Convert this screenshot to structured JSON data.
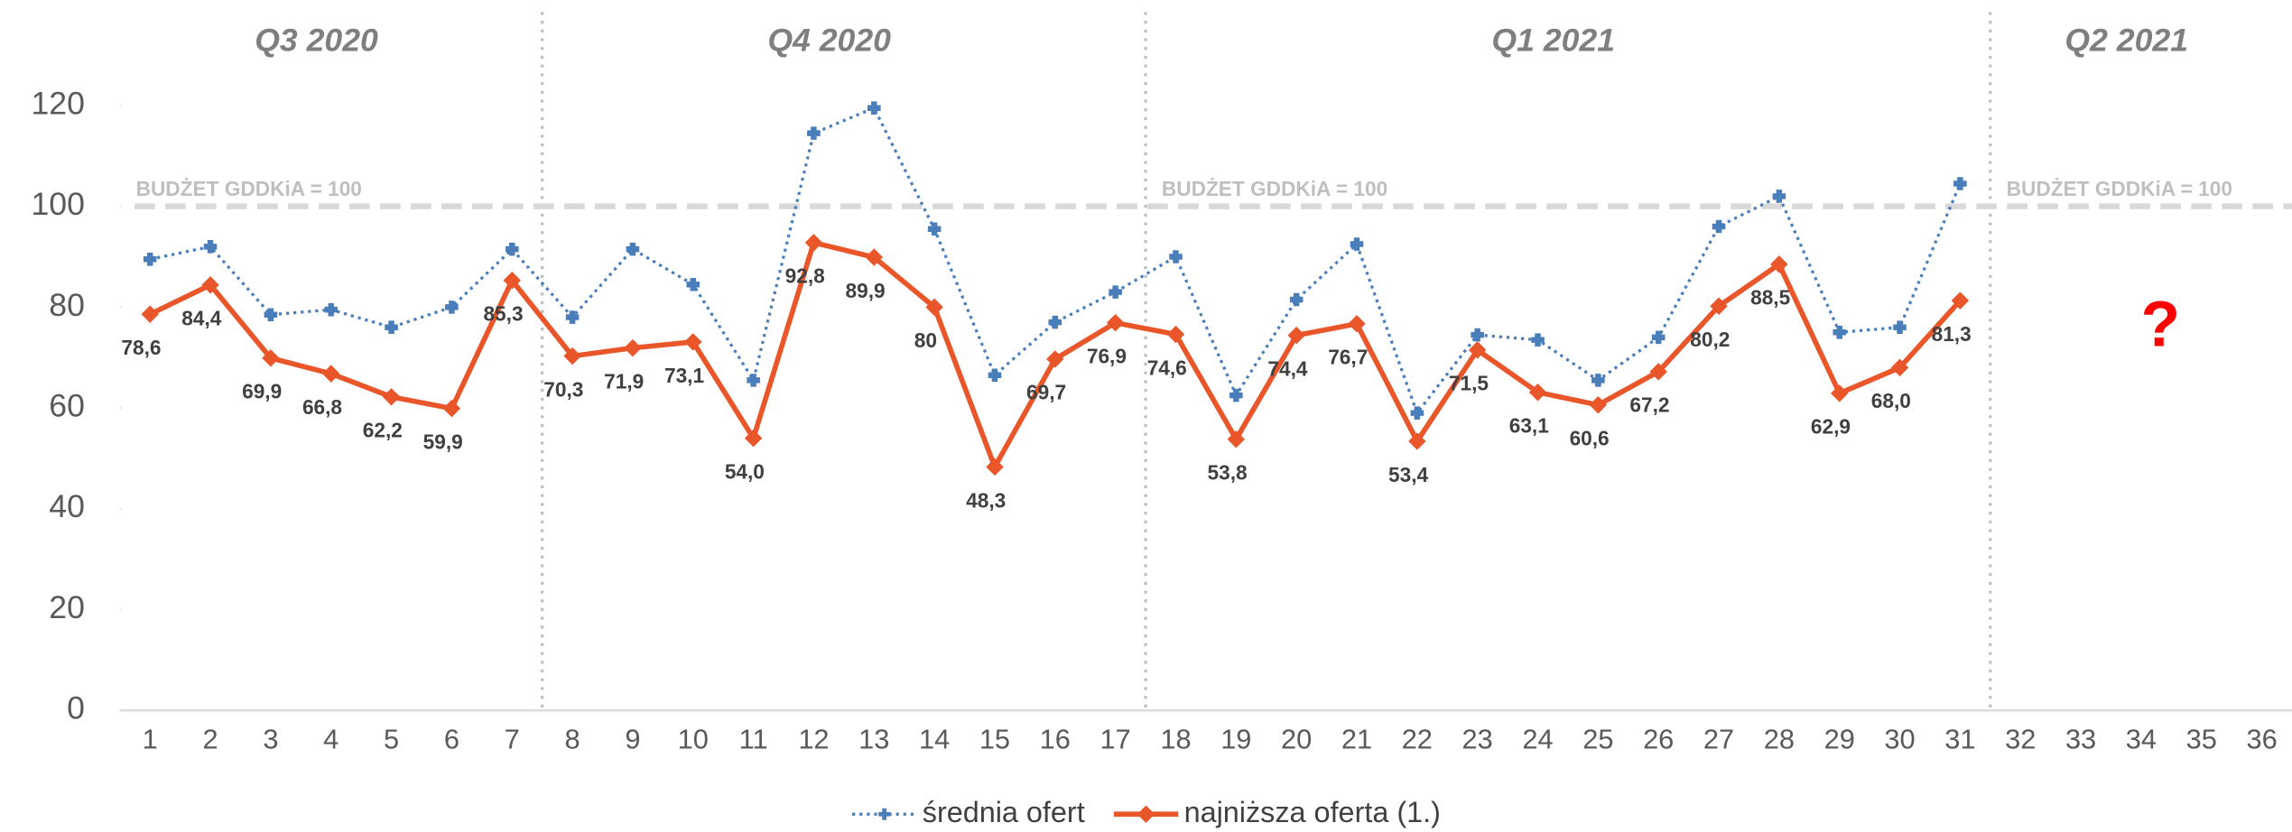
{
  "chart_data": {
    "type": "line",
    "categories": [
      "1",
      "2",
      "3",
      "4",
      "5",
      "6",
      "7",
      "8",
      "9",
      "10",
      "11",
      "12",
      "13",
      "14",
      "15",
      "16",
      "17",
      "18",
      "19",
      "20",
      "21",
      "22",
      "23",
      "24",
      "25",
      "26",
      "27",
      "28",
      "29",
      "30",
      "31",
      "32",
      "33",
      "34",
      "35",
      "36"
    ],
    "annotations": [
      "Q3 2020",
      "Q4 2020",
      "Q1 2021",
      "Q2 2021",
      "?"
    ],
    "reference_line": {
      "value": 100,
      "label": "BUDŻET GDDKiA = 100"
    },
    "ylim": [
      0,
      120
    ],
    "yticks": [
      0,
      20,
      40,
      60,
      80,
      100,
      120
    ],
    "series": [
      {
        "name": "średnia ofert",
        "color": "#4a7ebb",
        "values": [
          89.5,
          92,
          78.5,
          79.5,
          76,
          80,
          91.5,
          78,
          91.5,
          84.5,
          65.5,
          114.5,
          119.5,
          95.5,
          66.5,
          77,
          83,
          90,
          62.5,
          81.5,
          92.5,
          59,
          74.5,
          73.5,
          65.5,
          74,
          96,
          102,
          75,
          76,
          104.5,
          null,
          null,
          null,
          null,
          null
        ]
      },
      {
        "name": "najniższa oferta (1.)",
        "color": "#e8562a",
        "values": [
          78.6,
          84.4,
          69.9,
          66.8,
          62.2,
          59.9,
          85.3,
          70.3,
          71.9,
          73.1,
          54.0,
          92.8,
          89.9,
          80,
          48.3,
          69.7,
          76.9,
          74.6,
          53.8,
          74.4,
          76.7,
          53.4,
          71.5,
          63.1,
          60.6,
          67.2,
          80.2,
          88.5,
          62.9,
          68.0,
          81.3,
          null,
          null,
          null,
          null,
          null
        ],
        "value_labels": [
          "78,6",
          "84,4",
          "69,9",
          "66,8",
          "62,2",
          "59,9",
          "85,3",
          "70,3",
          "71,9",
          "73,1",
          "54,0",
          "92,8",
          "89,9",
          "80",
          "48,3",
          "69,7",
          "76,9",
          "74,6",
          "53,8",
          "74,4",
          "76,7",
          "53,4",
          "71,5",
          "63,1",
          "60,6",
          "67,2",
          "80,2",
          "88,5",
          "62,9",
          "68,0",
          "81,3",
          null,
          null,
          null,
          null,
          null
        ]
      }
    ]
  }
}
